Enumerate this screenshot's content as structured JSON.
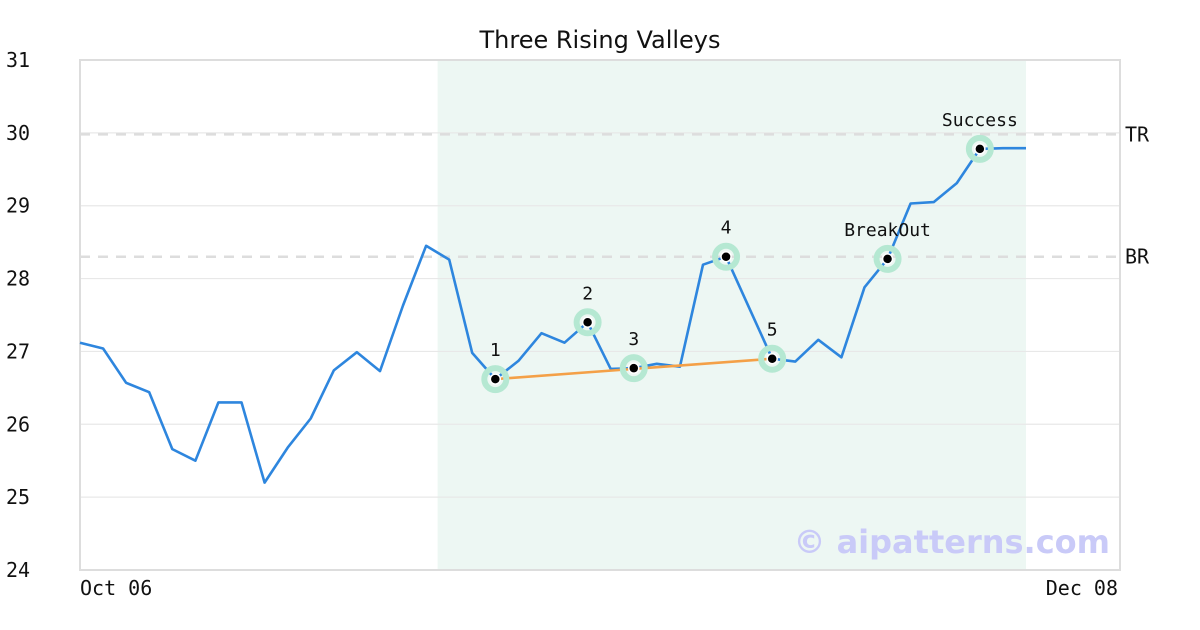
{
  "chart_data": {
    "type": "line",
    "title": "Three Rising Valleys",
    "ylim": [
      24,
      31
    ],
    "yticks": [
      "24",
      "25",
      "26",
      "27",
      "28",
      "29",
      "30",
      "31"
    ],
    "x_start_label": "Oct 06",
    "x_end_label": "Dec 08",
    "grid": "horizontal",
    "series": [
      {
        "color": "#2e86de",
        "values": [
          27.12,
          27.04,
          26.57,
          26.44,
          25.66,
          25.5,
          26.3,
          26.3,
          25.2,
          25.68,
          26.08,
          26.74,
          26.99,
          26.73,
          27.63,
          28.45,
          28.26,
          26.98,
          26.62,
          26.87,
          27.25,
          27.12,
          27.4,
          26.76,
          26.77,
          26.83,
          26.79,
          28.19,
          28.3,
          27.6,
          26.9,
          26.86,
          27.16,
          26.92,
          27.88,
          28.27,
          29.03,
          29.05,
          29.31,
          29.78,
          29.79,
          29.79
        ]
      }
    ],
    "highlight_range": {
      "start_index": 16,
      "end_index": 41,
      "color": "#edf7f3"
    },
    "levels": [
      {
        "label": "TR",
        "value": 29.98
      },
      {
        "label": "BR",
        "value": 28.3
      }
    ],
    "points": [
      {
        "label": "1",
        "index": 18,
        "value": 26.62
      },
      {
        "label": "2",
        "index": 22,
        "value": 27.4
      },
      {
        "label": "3",
        "index": 24,
        "value": 26.77
      },
      {
        "label": "4",
        "index": 28,
        "value": 28.3
      },
      {
        "label": "5",
        "index": 30,
        "value": 26.9
      },
      {
        "label": "BreakOut",
        "index": 35,
        "value": 28.27
      },
      {
        "label": "Success",
        "index": 39,
        "value": 29.78
      }
    ],
    "trendline": {
      "from_point": 0,
      "to_point": 4,
      "color": "#f4a047"
    },
    "point_marker_color": "#b5e8d2",
    "watermark": "© aipatterns.com"
  }
}
